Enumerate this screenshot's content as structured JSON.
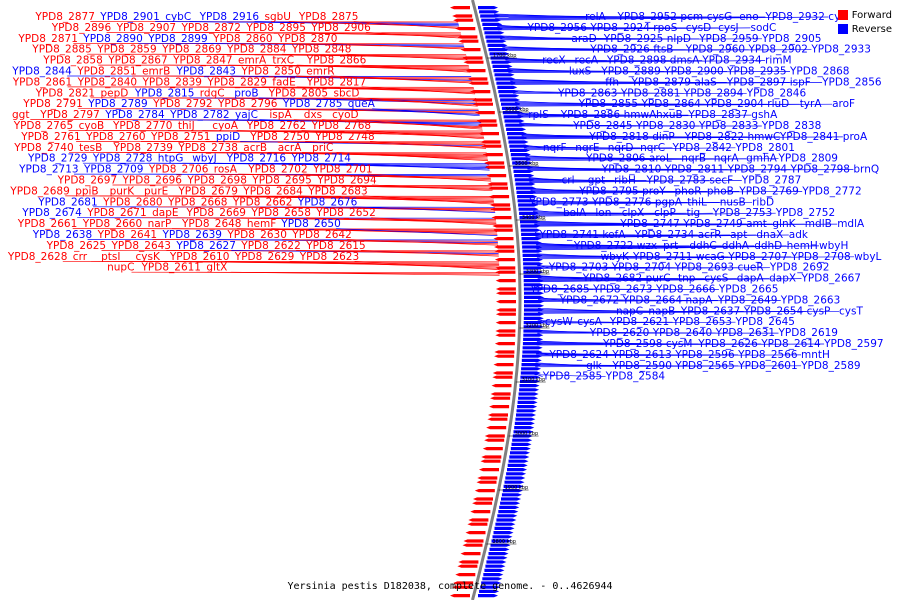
{
  "caption": "Yersinia pestis D182038, complete genome. - 0..4626944",
  "legend": [
    {
      "label": "Forward",
      "color": "#ff0000"
    },
    {
      "label": "Reverse",
      "color": "#0000ff"
    }
  ],
  "colors": {
    "forward": "#ff0000",
    "reverse": "#0000ff",
    "backbone": "#808080"
  },
  "scale_labels": [
    "1700 kbp",
    "3600 kbp",
    "3500 kbp",
    "3400 kbp",
    "3300 kbp",
    "3200 kbp",
    "3100 kbp",
    "3000 kbp",
    "1900 kbp",
    "3800 kbp"
  ],
  "left_labels": [
    {
      "text": "YPD8_2877",
      "s": "f"
    },
    {
      "text": "YPD8_2901",
      "s": "r"
    },
    {
      "text": "cybC",
      "s": "r"
    },
    {
      "text": "YPD8_2916",
      "s": "r"
    },
    {
      "text": "sgbU",
      "s": "f"
    },
    {
      "text": "YPD8_2875",
      "s": "f"
    },
    {
      "text": "YPD8_2896",
      "s": "f"
    },
    {
      "text": "YPD8_2907",
      "s": "f"
    },
    {
      "text": "YPD8_2872",
      "s": "f"
    },
    {
      "text": "YPD8_2895",
      "s": "f"
    },
    {
      "text": "YPD8_2906",
      "s": "f"
    },
    {
      "text": "YPD8_2871",
      "s": "f"
    },
    {
      "text": "YPD8_2890",
      "s": "r"
    },
    {
      "text": "YPD8_2899",
      "s": "r"
    },
    {
      "text": "YPD8_2860",
      "s": "f"
    },
    {
      "text": "YPD8_2870",
      "s": "f"
    },
    {
      "text": "YPD8_2885",
      "s": "f"
    },
    {
      "text": "YPD8_2859",
      "s": "f"
    },
    {
      "text": "YPD8_2869",
      "s": "f"
    },
    {
      "text": "YPD8_2884",
      "s": "f"
    },
    {
      "text": "YPD8_2848",
      "s": "f"
    },
    {
      "text": "YPD8_2858",
      "s": "f"
    },
    {
      "text": "YPD8_2867",
      "s": "f"
    },
    {
      "text": "YPD8_2847",
      "s": "f"
    },
    {
      "text": "emrA",
      "s": "f"
    },
    {
      "text": "trxC",
      "s": "f"
    },
    {
      "text": "YPD8_2866",
      "s": "f"
    },
    {
      "text": "YPD8_2844",
      "s": "r"
    },
    {
      "text": "YPD8_2851",
      "s": "f"
    },
    {
      "text": "emrB",
      "s": "f"
    },
    {
      "text": "YPD8_2843",
      "s": "r"
    },
    {
      "text": "YPD8_2850",
      "s": "f"
    },
    {
      "text": "emrR",
      "s": "f"
    },
    {
      "text": "YPD8_2861",
      "s": "f"
    },
    {
      "text": "YPD8_2840",
      "s": "f"
    },
    {
      "text": "YPD8_2839",
      "s": "f"
    },
    {
      "text": "YPD8_2829",
      "s": "f"
    },
    {
      "text": "fadE",
      "s": "f"
    },
    {
      "text": "YPD8_2817",
      "s": "f"
    },
    {
      "text": "YPD8_2821",
      "s": "f"
    },
    {
      "text": "pepD",
      "s": "f"
    },
    {
      "text": "YPD8_2815",
      "s": "r"
    },
    {
      "text": "rdgC",
      "s": "f"
    },
    {
      "text": "proB",
      "s": "r"
    },
    {
      "text": "YPD8_2805",
      "s": "f"
    },
    {
      "text": "sbcD",
      "s": "f"
    },
    {
      "text": "YPD8_2791",
      "s": "f"
    },
    {
      "text": "YPD8_2789",
      "s": "r"
    },
    {
      "text": "YPD8_2792",
      "s": "f"
    },
    {
      "text": "YPD8_2796",
      "s": "f"
    },
    {
      "text": "YPD8_2785",
      "s": "r"
    },
    {
      "text": "queA",
      "s": "r"
    },
    {
      "text": "ggt",
      "s": "f"
    },
    {
      "text": "YPD8_2797",
      "s": "f"
    },
    {
      "text": "YPD8_2784",
      "s": "r"
    },
    {
      "text": "YPD8_2782",
      "s": "r"
    },
    {
      "text": "yajC",
      "s": "r"
    },
    {
      "text": "ispA",
      "s": "f"
    },
    {
      "text": "dxs",
      "s": "f"
    },
    {
      "text": "cyoD",
      "s": "f"
    },
    {
      "text": "YPD8_2765",
      "s": "f"
    },
    {
      "text": "cyoB",
      "s": "f"
    },
    {
      "text": "YPD8_2770",
      "s": "f"
    },
    {
      "text": "thiJ",
      "s": "f"
    },
    {
      "text": "cyoA",
      "s": "f"
    },
    {
      "text": "YPD8_2762",
      "s": "f"
    },
    {
      "text": "YPD8_2768",
      "s": "f"
    },
    {
      "text": "YPD8_2761",
      "s": "f"
    },
    {
      "text": "YPD8_2760",
      "s": "f"
    },
    {
      "text": "YPD8_2751",
      "s": "f"
    },
    {
      "text": "ppiD",
      "s": "r"
    },
    {
      "text": "YPD8_2750",
      "s": "f"
    },
    {
      "text": "YPD8_2748",
      "s": "f"
    },
    {
      "text": "YPD8_2740",
      "s": "f"
    },
    {
      "text": "tesB",
      "s": "f"
    },
    {
      "text": "YPD8_2739",
      "s": "f"
    },
    {
      "text": "YPD8_2738",
      "s": "f"
    },
    {
      "text": "acrB",
      "s": "f"
    },
    {
      "text": "acrA",
      "s": "f"
    },
    {
      "text": "priC",
      "s": "f"
    },
    {
      "text": "YPD8_2729",
      "s": "r"
    },
    {
      "text": "YPD8_2728",
      "s": "r"
    },
    {
      "text": "htpG",
      "s": "r"
    },
    {
      "text": "wbyJ",
      "s": "r"
    },
    {
      "text": "YPD8_2716",
      "s": "r"
    },
    {
      "text": "YPD8_2714",
      "s": "r"
    },
    {
      "text": "YPD8_2713",
      "s": "r"
    },
    {
      "text": "YPD8_2709",
      "s": "r"
    },
    {
      "text": "YPD8_2706",
      "s": "f"
    },
    {
      "text": "rosA",
      "s": "f"
    },
    {
      "text": "YPD8_2702",
      "s": "f"
    },
    {
      "text": "YPD8_2701",
      "s": "f"
    },
    {
      "text": "YPD8_2697",
      "s": "f"
    },
    {
      "text": "YPD8_2696",
      "s": "f"
    },
    {
      "text": "YPD8_2698",
      "s": "f"
    },
    {
      "text": "YPD8_2695",
      "s": "f"
    },
    {
      "text": "YPD8_2694",
      "s": "f"
    },
    {
      "text": "YPD8_2689",
      "s": "f"
    },
    {
      "text": "ppiB",
      "s": "f"
    },
    {
      "text": "purK",
      "s": "f"
    },
    {
      "text": "purE",
      "s": "f"
    },
    {
      "text": "YPD8_2679",
      "s": "f"
    },
    {
      "text": "YPD8_2684",
      "s": "f"
    },
    {
      "text": "YPD8_2683",
      "s": "f"
    },
    {
      "text": "YPD8_2681",
      "s": "r"
    },
    {
      "text": "YPD8_2680",
      "s": "f"
    },
    {
      "text": "YPD8_2668",
      "s": "f"
    },
    {
      "text": "YPD8_2662",
      "s": "f"
    },
    {
      "text": "YPD8_2676",
      "s": "r"
    },
    {
      "text": "YPD8_2674",
      "s": "r"
    },
    {
      "text": "YPD8_2671",
      "s": "f"
    },
    {
      "text": "dapE",
      "s": "f"
    },
    {
      "text": "YPD8_2669",
      "s": "f"
    },
    {
      "text": "YPD8_2658",
      "s": "f"
    },
    {
      "text": "YPD8_2652",
      "s": "f"
    },
    {
      "text": "YPD8_2661",
      "s": "f"
    },
    {
      "text": "YPD8_2660",
      "s": "f"
    },
    {
      "text": "narP",
      "s": "f"
    },
    {
      "text": "YPD8_2648",
      "s": "f"
    },
    {
      "text": "hemF",
      "s": "f"
    },
    {
      "text": "YPD8_2650",
      "s": "r"
    },
    {
      "text": "YPD8_2638",
      "s": "r"
    },
    {
      "text": "YPD8_2641",
      "s": "f"
    },
    {
      "text": "YPD8_2639",
      "s": "r"
    },
    {
      "text": "YPD8_2630",
      "s": "f"
    },
    {
      "text": "YPD8_2642",
      "s": "f"
    },
    {
      "text": "YPD8_2625",
      "s": "f"
    },
    {
      "text": "YPD8_2643",
      "s": "f"
    },
    {
      "text": "YPD8_2627",
      "s": "r"
    },
    {
      "text": "YPD8_2622",
      "s": "f"
    },
    {
      "text": "YPD8_2615",
      "s": "f"
    },
    {
      "text": "YPD8_2628",
      "s": "f"
    },
    {
      "text": "crr",
      "s": "f"
    },
    {
      "text": "ptsI",
      "s": "f"
    },
    {
      "text": "cysK",
      "s": "f"
    },
    {
      "text": "YPD8_2610",
      "s": "f"
    },
    {
      "text": "YPD8_2629",
      "s": "f"
    },
    {
      "text": "YPD8_2623",
      "s": "f"
    },
    {
      "text": "nupC",
      "s": "f"
    },
    {
      "text": "YPD8_2611",
      "s": "f"
    },
    {
      "text": "gltX",
      "s": "f"
    }
  ],
  "right_labels": [
    {
      "text": "relA"
    },
    {
      "text": "YPD8_2952"
    },
    {
      "text": "pcm"
    },
    {
      "text": "cysG"
    },
    {
      "text": "eno"
    },
    {
      "text": "YPD8_2932"
    },
    {
      "text": "cysI"
    },
    {
      "text": "YPD8_2956"
    },
    {
      "text": "YPD8_2924"
    },
    {
      "text": "rpoS"
    },
    {
      "text": "cysD"
    },
    {
      "text": "cysJ"
    },
    {
      "text": "sodC"
    },
    {
      "text": "araD"
    },
    {
      "text": "YPD8_2925"
    },
    {
      "text": "nlpD"
    },
    {
      "text": "YPD8_2959"
    },
    {
      "text": "YPD8_2905"
    },
    {
      "text": "YPD8_2926"
    },
    {
      "text": "ftsB"
    },
    {
      "text": "YPD8_2960"
    },
    {
      "text": "YPD8_2902"
    },
    {
      "text": "YPD8_2933"
    },
    {
      "text": "recX"
    },
    {
      "text": "recA"
    },
    {
      "text": "YPD8_2898"
    },
    {
      "text": "dmsA"
    },
    {
      "text": "YPD8_2934"
    },
    {
      "text": "rimM"
    },
    {
      "text": "luxS"
    },
    {
      "text": "YPD8_2889"
    },
    {
      "text": "YPD8_2900"
    },
    {
      "text": "YPD8_2935"
    },
    {
      "text": "YPD8_2868"
    },
    {
      "text": "ffh"
    },
    {
      "text": "YPD8_2879"
    },
    {
      "text": "alaS"
    },
    {
      "text": "YPD8_2897"
    },
    {
      "text": "ispF"
    },
    {
      "text": "YPD8_2856"
    },
    {
      "text": "YPD8_2863"
    },
    {
      "text": "YPD8_2881"
    },
    {
      "text": "YPD8_2894"
    },
    {
      "text": "YPD8_2846"
    },
    {
      "text": "YPD8_2855"
    },
    {
      "text": "YPD8_2864"
    },
    {
      "text": "YPD8_2904"
    },
    {
      "text": "rluD"
    },
    {
      "text": "tyrA"
    },
    {
      "text": "aroF"
    },
    {
      "text": "rplS"
    },
    {
      "text": "YPD8_2886"
    },
    {
      "text": "hmwA"
    },
    {
      "text": "hxuB"
    },
    {
      "text": "YPD8_2837"
    },
    {
      "text": "gshA"
    },
    {
      "text": "YPD8_2845"
    },
    {
      "text": "YPD8_2830"
    },
    {
      "text": "YPD8_2833"
    },
    {
      "text": "YPD8_2838"
    },
    {
      "text": "YPD8_2818"
    },
    {
      "text": "dinP"
    },
    {
      "text": "YPD8_2822"
    },
    {
      "text": "hmwC"
    },
    {
      "text": "YPD8_2841"
    },
    {
      "text": "proA"
    },
    {
      "text": "nqrF"
    },
    {
      "text": "nqrE"
    },
    {
      "text": "nqrD"
    },
    {
      "text": "nqrC"
    },
    {
      "text": "YPD8_2842"
    },
    {
      "text": "YPD8_2801"
    },
    {
      "text": "YPD8_2806"
    },
    {
      "text": "aroL"
    },
    {
      "text": "nqrB"
    },
    {
      "text": "nqrA"
    },
    {
      "text": "gmhA"
    },
    {
      "text": "YPD8_2809"
    },
    {
      "text": "YPD8_2810"
    },
    {
      "text": "YPD8_2811"
    },
    {
      "text": "YPD8_2794"
    },
    {
      "text": "YPD8_2798"
    },
    {
      "text": "brnQ"
    },
    {
      "text": "crl"
    },
    {
      "text": "gpt"
    },
    {
      "text": "ribH"
    },
    {
      "text": "YPD8_2783"
    },
    {
      "text": "secF"
    },
    {
      "text": "YPD8_2787"
    },
    {
      "text": "YPD8_2795"
    },
    {
      "text": "proY"
    },
    {
      "text": "phoR"
    },
    {
      "text": "phoB"
    },
    {
      "text": "YPD8_2769"
    },
    {
      "text": "YPD8_2772"
    },
    {
      "text": "YPD8_2773"
    },
    {
      "text": "YPD8_2776"
    },
    {
      "text": "pgpA"
    },
    {
      "text": "thiL"
    },
    {
      "text": "nusB"
    },
    {
      "text": "ribD"
    },
    {
      "text": "bolA"
    },
    {
      "text": "lon"
    },
    {
      "text": "clpX"
    },
    {
      "text": "clpP"
    },
    {
      "text": "tig"
    },
    {
      "text": "YPD8_2753"
    },
    {
      "text": "YPD8_2752"
    },
    {
      "text": "YPD8_2747"
    },
    {
      "text": "YPD8_2749"
    },
    {
      "text": "amt"
    },
    {
      "text": "glnK"
    },
    {
      "text": "mdlB"
    },
    {
      "text": "mdlA"
    },
    {
      "text": "YPD8_2741"
    },
    {
      "text": "kefA"
    },
    {
      "text": "YPD8_2734"
    },
    {
      "text": "acrR"
    },
    {
      "text": "apt"
    },
    {
      "text": "dnaX"
    },
    {
      "text": "adk"
    },
    {
      "text": "YPD8_2722"
    },
    {
      "text": "wzx"
    },
    {
      "text": "prt"
    },
    {
      "text": "ddhC"
    },
    {
      "text": "ddhA"
    },
    {
      "text": "ddhD"
    },
    {
      "text": "hemH"
    },
    {
      "text": "wbyH"
    },
    {
      "text": "wbyK"
    },
    {
      "text": "YPD8_2711"
    },
    {
      "text": "wcaG"
    },
    {
      "text": "YPD8_2707"
    },
    {
      "text": "YPD8_2708"
    },
    {
      "text": "wbyL"
    },
    {
      "text": "YPD8_2703"
    },
    {
      "text": "YPD8_2704"
    },
    {
      "text": "YPD8_2693"
    },
    {
      "text": "cueR"
    },
    {
      "text": "YPD8_2692"
    },
    {
      "text": "YPD8_2682"
    },
    {
      "text": "purC"
    },
    {
      "text": "tnp"
    },
    {
      "text": "cysS"
    },
    {
      "text": "dapA"
    },
    {
      "text": "dapX"
    },
    {
      "text": "YPD8_2667"
    },
    {
      "text": "YPD8_2685"
    },
    {
      "text": "YPD8_2673"
    },
    {
      "text": "YPD8_2666"
    },
    {
      "text": "YPD8_2665"
    },
    {
      "text": "YPD8_2672"
    },
    {
      "text": "YPD8_2664"
    },
    {
      "text": "napA"
    },
    {
      "text": "YPD8_2649"
    },
    {
      "text": "YPD8_2663"
    },
    {
      "text": "napC"
    },
    {
      "text": "napB"
    },
    {
      "text": "YPD8_2637"
    },
    {
      "text": "YPD8_2654"
    },
    {
      "text": "cysP"
    },
    {
      "text": "cysT"
    },
    {
      "text": "cysW"
    },
    {
      "text": "cysA"
    },
    {
      "text": "YPD8_2621"
    },
    {
      "text": "YPD8_2653"
    },
    {
      "text": "YPD8_2645"
    },
    {
      "text": "YPD8_2620"
    },
    {
      "text": "YPD8_2640"
    },
    {
      "text": "YPD8_2631"
    },
    {
      "text": "YPD8_2619"
    },
    {
      "text": "YPD8_2598"
    },
    {
      "text": "cysM"
    },
    {
      "text": "YPD8_2626"
    },
    {
      "text": "YPD8_2614"
    },
    {
      "text": "YPD8_2597"
    },
    {
      "text": "YPD8_2624"
    },
    {
      "text": "YPD8_2613"
    },
    {
      "text": "YPD8_2596"
    },
    {
      "text": "YPD8_2566"
    },
    {
      "text": "mntH"
    },
    {
      "text": "glk"
    },
    {
      "text": "YPD8_2590"
    },
    {
      "text": "YPD8_2565"
    },
    {
      "text": "YPD8_2601"
    },
    {
      "text": "YPD8_2589"
    },
    {
      "text": "YPD8_2585"
    },
    {
      "text": "YPD8_2584"
    }
  ]
}
